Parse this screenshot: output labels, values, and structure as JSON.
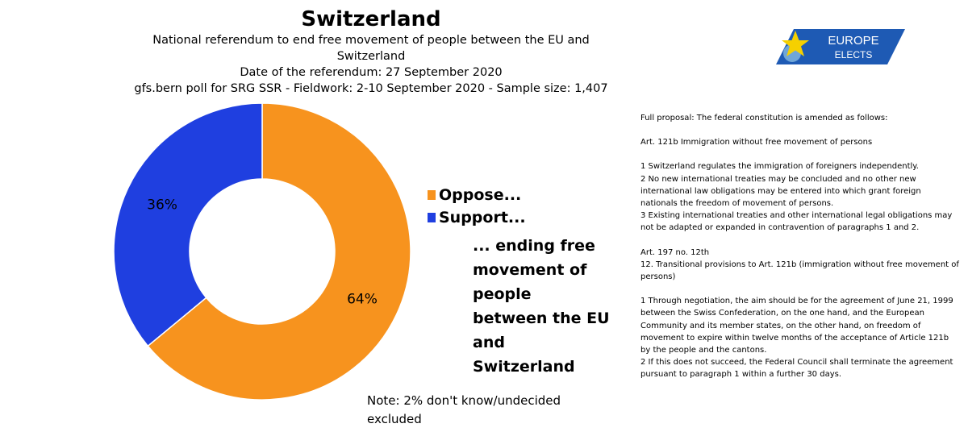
{
  "header": {
    "title": "Switzerland",
    "line1": "National referendum to end free movement of people between the EU and Switzerland",
    "line2": "Date of the referendum: 27 September 2020",
    "line3": "gfs.bern poll for SRG SSR - Fieldwork: 2-10 September 2020 - Sample size: 1,407"
  },
  "logo": {
    "line1": "EUROPE",
    "line2": "ELECTS"
  },
  "chart_data": {
    "type": "pie",
    "donut": true,
    "categories": [
      "Oppose...",
      "Support..."
    ],
    "values": [
      64,
      36
    ],
    "labels": [
      "64%",
      "36%"
    ],
    "colors": [
      "#f7931e",
      "#1f3fe0"
    ]
  },
  "legend": {
    "items": [
      "Oppose...",
      "Support..."
    ]
  },
  "annotation": "... ending free movement of people between the EU and Switzerland",
  "note": "Note: 2% don't know/undecided excluded",
  "proposal": {
    "paragraphs": [
      "Full proposal: The federal constitution is amended as follows:",
      "Art. 121b Immigration without free movement of persons",
      "1 Switzerland regulates the immigration of foreigners independently.\n2 No new international treaties may be concluded and no other new international law obligations may be entered into which grant foreign nationals the freedom of movement of persons.\n3 Existing international treaties and other international legal obligations may not be adapted or expanded in contravention of paragraphs 1 and 2.",
      "Art. 197 no. 12th\n12. Transitional provisions to Art. 121b (immigration without free movement of persons)",
      "1 Through negotiation, the aim should be for the agreement of June 21, 1999 between the Swiss Confederation, on the one hand, and the European Community and its member states, on the other hand, on freedom of movement to expire within twelve months of the acceptance of Article 121b by the people and the cantons.\n2 If this does not succeed, the Federal Council shall terminate the agreement pursuant to paragraph 1 within a further 30 days."
    ]
  }
}
